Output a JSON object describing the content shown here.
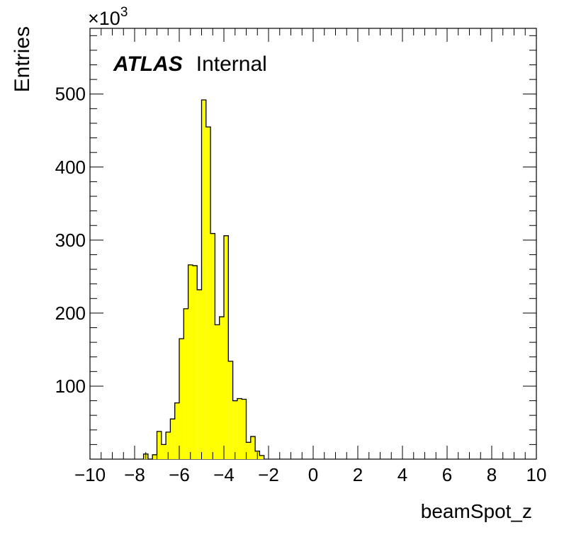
{
  "chart_data": {
    "type": "histogram",
    "xlabel": "beamSpot_z",
    "ylabel": "Entries",
    "y_multiplier": "×10",
    "y_multiplier_exponent": "3",
    "xlim": [
      -10,
      10
    ],
    "ylim": [
      0,
      590
    ],
    "x_ticks": [
      -10,
      -8,
      -6,
      -4,
      -2,
      0,
      2,
      4,
      6,
      8,
      10
    ],
    "x_tick_labels": [
      "−10",
      "−8",
      "−6",
      "−4",
      "−2",
      "0",
      "2",
      "4",
      "6",
      "8",
      "10"
    ],
    "y_ticks": [
      100,
      200,
      300,
      400,
      500
    ],
    "y_tick_labels": [
      "100",
      "200",
      "300",
      "400",
      "500"
    ],
    "bin_width": 0.2,
    "bins": [
      {
        "x0": -7.6,
        "x1": -7.4,
        "y": 7
      },
      {
        "x0": -7.4,
        "x1": -7.2,
        "y": 0
      },
      {
        "x0": -7.2,
        "x1": -7.0,
        "y": 6
      },
      {
        "x0": -7.0,
        "x1": -6.8,
        "y": 38
      },
      {
        "x0": -6.8,
        "x1": -6.6,
        "y": 20
      },
      {
        "x0": -6.6,
        "x1": -6.4,
        "y": 37
      },
      {
        "x0": -6.4,
        "x1": -6.2,
        "y": 55
      },
      {
        "x0": -6.2,
        "x1": -6.0,
        "y": 77
      },
      {
        "x0": -6.0,
        "x1": -5.8,
        "y": 165
      },
      {
        "x0": -5.8,
        "x1": -5.6,
        "y": 206
      },
      {
        "x0": -5.6,
        "x1": -5.4,
        "y": 266
      },
      {
        "x0": -5.4,
        "x1": -5.2,
        "y": 265
      },
      {
        "x0": -5.2,
        "x1": -5.0,
        "y": 232
      },
      {
        "x0": -5.0,
        "x1": -4.8,
        "y": 492
      },
      {
        "x0": -4.8,
        "x1": -4.6,
        "y": 455
      },
      {
        "x0": -4.6,
        "x1": -4.4,
        "y": 309
      },
      {
        "x0": -4.4,
        "x1": -4.2,
        "y": 184
      },
      {
        "x0": -4.2,
        "x1": -4.0,
        "y": 195
      },
      {
        "x0": -4.0,
        "x1": -3.8,
        "y": 306
      },
      {
        "x0": -3.8,
        "x1": -3.6,
        "y": 134
      },
      {
        "x0": -3.6,
        "x1": -3.4,
        "y": 80
      },
      {
        "x0": -3.4,
        "x1": -3.2,
        "y": 83
      },
      {
        "x0": -3.2,
        "x1": -3.0,
        "y": 82
      },
      {
        "x0": -3.0,
        "x1": -2.8,
        "y": 23
      },
      {
        "x0": -2.8,
        "x1": -2.6,
        "y": 31
      },
      {
        "x0": -2.6,
        "x1": -2.4,
        "y": 11
      },
      {
        "x0": -2.4,
        "x1": -2.2,
        "y": 5
      }
    ],
    "fill_color": "#ffff00",
    "line_color": "#000000",
    "grid": false,
    "annotation": {
      "brand": "ATLAS",
      "label": "Internal",
      "placement": "top-left"
    }
  }
}
